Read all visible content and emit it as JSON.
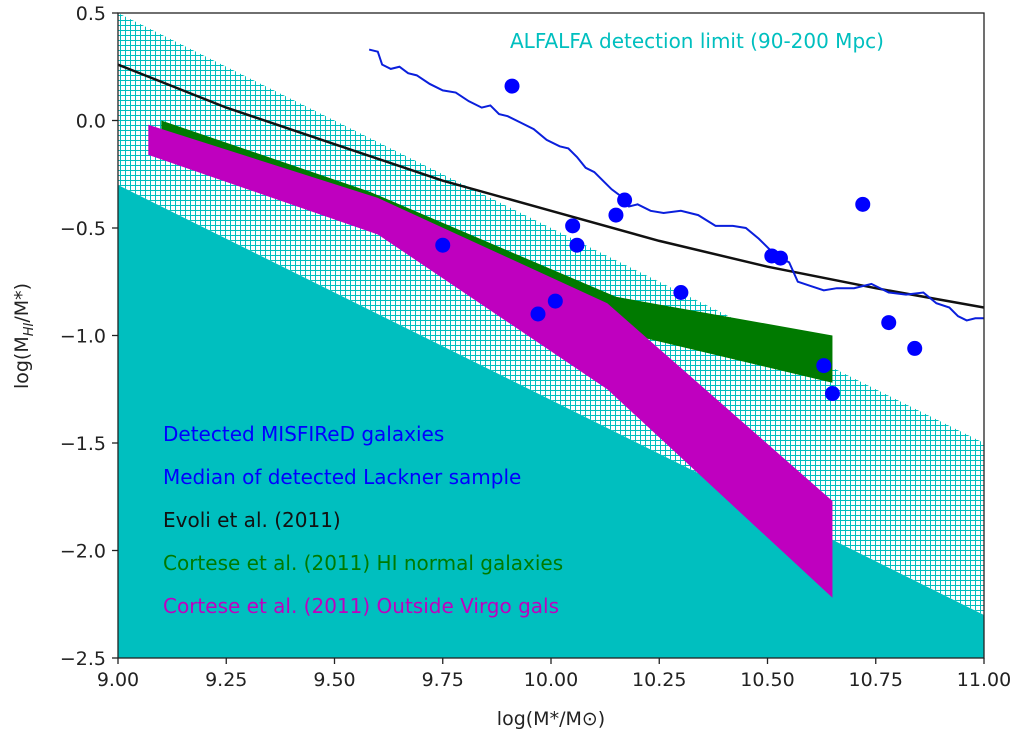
{
  "chart_data": {
    "type": "scatter",
    "xlabel": "log(M*/M⊙)",
    "ylabel": "log(M_HI/M*)",
    "ylabel_main": "log(M",
    "ylabel_sub": "HI",
    "ylabel_tail": "/M*)",
    "xlim": [
      9.0,
      11.0
    ],
    "ylim": [
      -2.5,
      0.5
    ],
    "x_ticks": [
      9.0,
      9.25,
      9.5,
      9.75,
      10.0,
      10.25,
      10.5,
      10.75,
      11.0
    ],
    "x_tick_labels": [
      "9.00",
      "9.25",
      "9.50",
      "9.75",
      "10.00",
      "10.25",
      "10.50",
      "10.75",
      "11.00"
    ],
    "y_ticks": [
      0.5,
      0.0,
      -0.5,
      -1.0,
      -1.5,
      -2.0,
      -2.5
    ],
    "y_tick_labels": [
      "0.5",
      "0.0",
      "−0.5",
      "−1.0",
      "−1.5",
      "−2.0",
      "−2.5"
    ],
    "grid": false,
    "legend_position": "bottom-left",
    "annotation": "ALFALFA detection limit (90-200 Mpc)",
    "colors": {
      "detection_fill": "#00bfbf",
      "points": "#0000ff",
      "median_line": "#0a1fdc",
      "evoli": "#111111",
      "cortese_normal": "#007a00",
      "cortese_virgo": "#bf00bf",
      "axes": "#222222"
    },
    "series": [
      {
        "name": "Detected MISFIReD galaxies",
        "kind": "scatter",
        "points": [
          {
            "x": 9.91,
            "y": 0.16
          },
          {
            "x": 9.75,
            "y": -0.58
          },
          {
            "x": 9.97,
            "y": -0.9
          },
          {
            "x": 10.01,
            "y": -0.84
          },
          {
            "x": 10.05,
            "y": -0.49
          },
          {
            "x": 10.06,
            "y": -0.58
          },
          {
            "x": 10.15,
            "y": -0.44
          },
          {
            "x": 10.17,
            "y": -0.37
          },
          {
            "x": 10.3,
            "y": -0.8
          },
          {
            "x": 10.51,
            "y": -0.63
          },
          {
            "x": 10.53,
            "y": -0.64
          },
          {
            "x": 10.63,
            "y": -1.14
          },
          {
            "x": 10.65,
            "y": -1.27
          },
          {
            "x": 10.72,
            "y": -0.39
          },
          {
            "x": 10.78,
            "y": -0.94
          },
          {
            "x": 10.84,
            "y": -1.06
          }
        ]
      },
      {
        "name": "Median of detected Lackner sample",
        "kind": "line",
        "points": [
          {
            "x": 9.58,
            "y": 0.33
          },
          {
            "x": 9.6,
            "y": 0.32
          },
          {
            "x": 9.61,
            "y": 0.26
          },
          {
            "x": 9.63,
            "y": 0.24
          },
          {
            "x": 9.65,
            "y": 0.25
          },
          {
            "x": 9.67,
            "y": 0.22
          },
          {
            "x": 9.69,
            "y": 0.21
          },
          {
            "x": 9.72,
            "y": 0.17
          },
          {
            "x": 9.75,
            "y": 0.14
          },
          {
            "x": 9.78,
            "y": 0.13
          },
          {
            "x": 9.81,
            "y": 0.09
          },
          {
            "x": 9.84,
            "y": 0.06
          },
          {
            "x": 9.86,
            "y": 0.07
          },
          {
            "x": 9.88,
            "y": 0.03
          },
          {
            "x": 9.9,
            "y": 0.02
          },
          {
            "x": 9.93,
            "y": -0.01
          },
          {
            "x": 9.96,
            "y": -0.04
          },
          {
            "x": 9.99,
            "y": -0.09
          },
          {
            "x": 10.02,
            "y": -0.12
          },
          {
            "x": 10.04,
            "y": -0.13
          },
          {
            "x": 10.06,
            "y": -0.17
          },
          {
            "x": 10.08,
            "y": -0.22
          },
          {
            "x": 10.1,
            "y": -0.24
          },
          {
            "x": 10.12,
            "y": -0.28
          },
          {
            "x": 10.14,
            "y": -0.32
          },
          {
            "x": 10.16,
            "y": -0.35
          },
          {
            "x": 10.18,
            "y": -0.4
          },
          {
            "x": 10.2,
            "y": -0.39
          },
          {
            "x": 10.23,
            "y": -0.42
          },
          {
            "x": 10.26,
            "y": -0.43
          },
          {
            "x": 10.3,
            "y": -0.42
          },
          {
            "x": 10.34,
            "y": -0.44
          },
          {
            "x": 10.38,
            "y": -0.49
          },
          {
            "x": 10.42,
            "y": -0.49
          },
          {
            "x": 10.45,
            "y": -0.5
          },
          {
            "x": 10.48,
            "y": -0.55
          },
          {
            "x": 10.5,
            "y": -0.59
          },
          {
            "x": 10.52,
            "y": -0.63
          },
          {
            "x": 10.55,
            "y": -0.66
          },
          {
            "x": 10.57,
            "y": -0.75
          },
          {
            "x": 10.6,
            "y": -0.77
          },
          {
            "x": 10.63,
            "y": -0.79
          },
          {
            "x": 10.66,
            "y": -0.78
          },
          {
            "x": 10.7,
            "y": -0.78
          },
          {
            "x": 10.74,
            "y": -0.76
          },
          {
            "x": 10.78,
            "y": -0.8
          },
          {
            "x": 10.82,
            "y": -0.81
          },
          {
            "x": 10.86,
            "y": -0.8
          },
          {
            "x": 10.89,
            "y": -0.85
          },
          {
            "x": 10.92,
            "y": -0.87
          },
          {
            "x": 10.94,
            "y": -0.91
          },
          {
            "x": 10.96,
            "y": -0.93
          },
          {
            "x": 10.98,
            "y": -0.92
          },
          {
            "x": 11.0,
            "y": -0.92
          }
        ]
      },
      {
        "name": "Evoli et al. (2011)",
        "kind": "line",
        "points": [
          {
            "x": 9.0,
            "y": 0.26
          },
          {
            "x": 9.25,
            "y": 0.06
          },
          {
            "x": 9.5,
            "y": -0.11
          },
          {
            "x": 9.75,
            "y": -0.28
          },
          {
            "x": 10.0,
            "y": -0.42
          },
          {
            "x": 10.25,
            "y": -0.56
          },
          {
            "x": 10.5,
            "y": -0.68
          },
          {
            "x": 10.75,
            "y": -0.78
          },
          {
            "x": 11.0,
            "y": -0.87
          }
        ]
      },
      {
        "name": "Cortese et al. (2011) HI normal galaxies",
        "kind": "band",
        "x": [
          9.1,
          9.58,
          10.15,
          10.65
        ],
        "upper": [
          0.0,
          -0.33,
          -0.82,
          -1.0
        ],
        "lower": [
          -0.14,
          -0.41,
          -0.98,
          -1.22
        ]
      },
      {
        "name": "Cortese et al. (2011) Outside Virgo gals",
        "kind": "band",
        "x": [
          9.07,
          9.6,
          10.13,
          10.65
        ],
        "upper": [
          -0.02,
          -0.36,
          -0.85,
          -1.77
        ],
        "lower": [
          -0.16,
          -0.53,
          -1.25,
          -2.22
        ]
      }
    ],
    "detection_limit": {
      "name": "ALFALFA detection limit (90-200 Mpc)",
      "x": [
        9.0,
        11.0
      ],
      "upper": [
        0.5,
        -1.5
      ],
      "lower": [
        -0.3,
        -2.3
      ]
    }
  }
}
